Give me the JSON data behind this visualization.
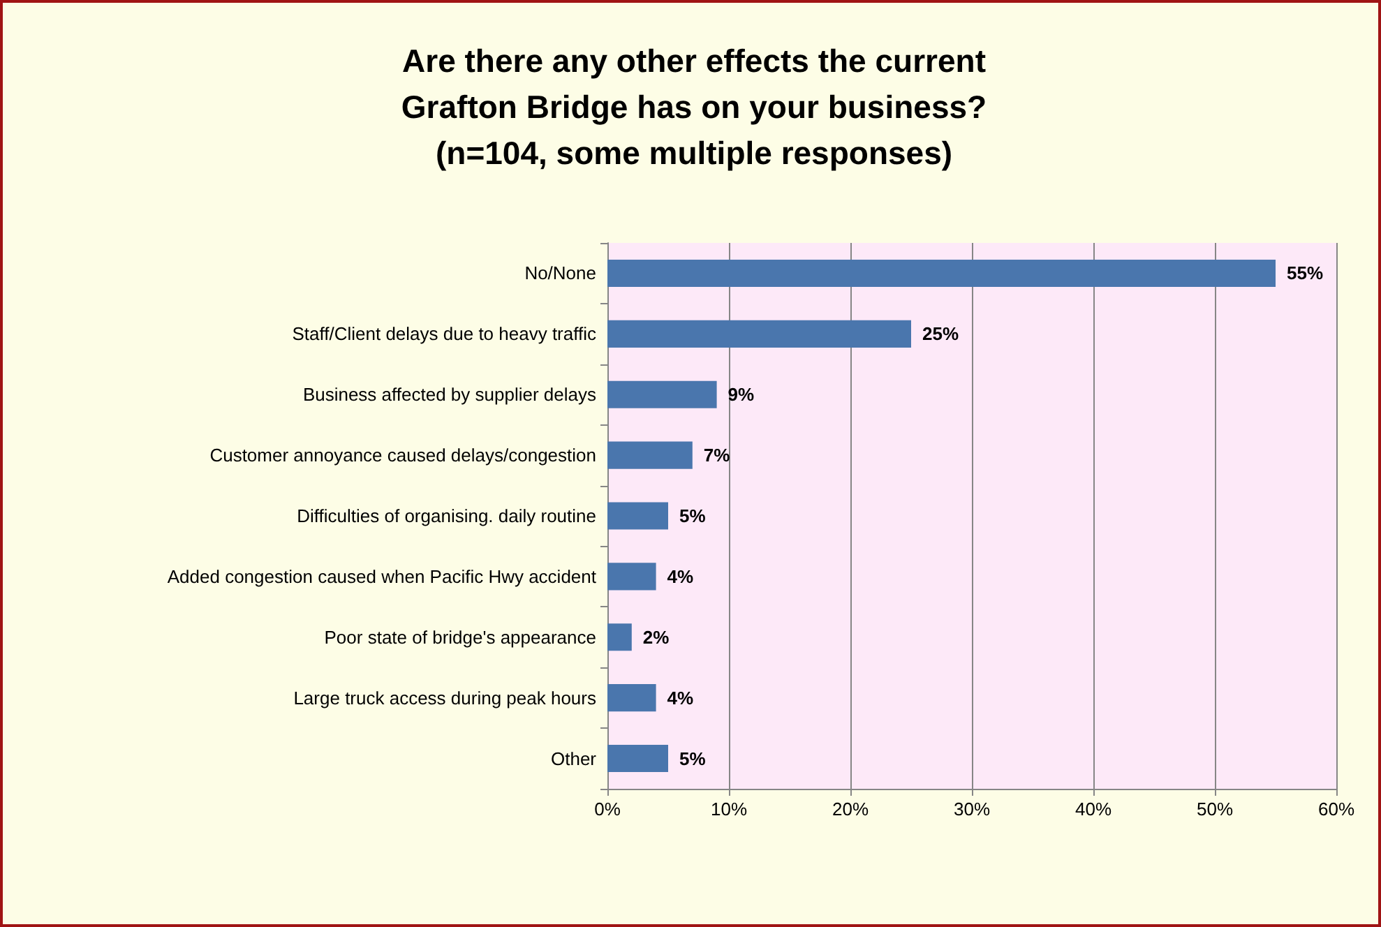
{
  "chart_data": {
    "type": "bar",
    "orientation": "horizontal",
    "title": "Are there any other effects the current\nGrafton Bridge has on your business?\n(n=104, some multiple responses)",
    "categories": [
      "No/None",
      "Staff/Client delays due to heavy traffic",
      "Business affected by supplier delays",
      "Customer annoyance caused delays/congestion",
      "Difficulties of organising. daily routine",
      "Added congestion caused when Pacific Hwy accident",
      "Poor state of bridge's appearance",
      "Large truck access during peak hours",
      "Other"
    ],
    "values": [
      55,
      25,
      9,
      7,
      5,
      4,
      2,
      4,
      5
    ],
    "value_labels": [
      "55%",
      "25%",
      "9%",
      "7%",
      "5%",
      "4%",
      "2%",
      "4%",
      "5%"
    ],
    "color": "#4a76ad",
    "xlim": [
      0,
      60
    ],
    "xticks": [
      {
        "value": 0,
        "label": "0%"
      },
      {
        "value": 10,
        "label": "10%"
      },
      {
        "value": 20,
        "label": "20%"
      },
      {
        "value": 30,
        "label": "30%"
      },
      {
        "value": 40,
        "label": "40%"
      },
      {
        "value": 50,
        "label": "50%"
      },
      {
        "value": 60,
        "label": "60%"
      }
    ],
    "grid": "x"
  }
}
